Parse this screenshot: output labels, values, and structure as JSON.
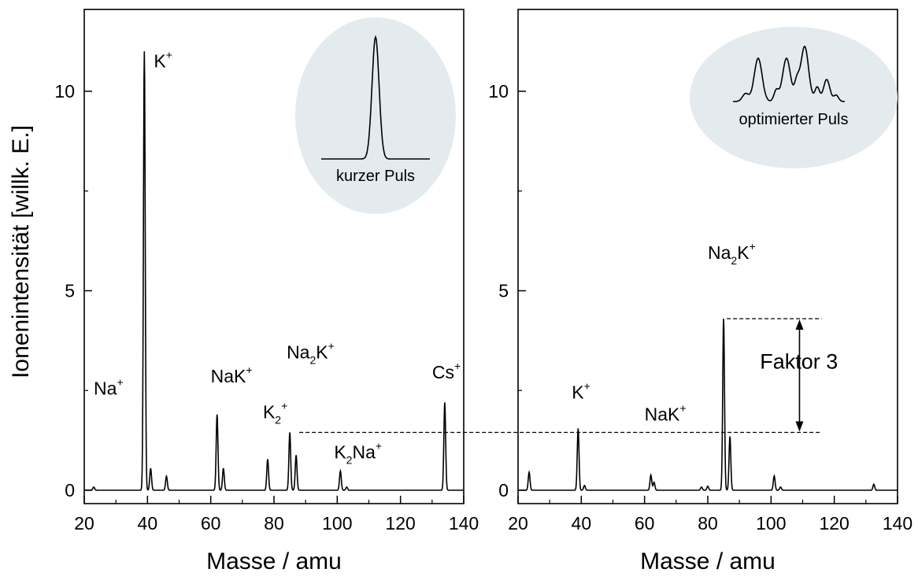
{
  "chart_data": {
    "type": "line",
    "ylabel": "Ionenintensität [willk. E.]",
    "ylim": [
      0,
      12
    ],
    "yticks": [
      0,
      5,
      10
    ],
    "panels": [
      {
        "id": "left",
        "xlabel": "Masse / amu",
        "xlim": [
          20,
          140
        ],
        "xticks": [
          20,
          40,
          60,
          80,
          100,
          120,
          140
        ],
        "inset": {
          "label": "kurzer Puls",
          "shape": "single-peak"
        },
        "peaks": [
          {
            "x": 23,
            "y": 0.08
          },
          {
            "x": 39,
            "y": 11.0
          },
          {
            "x": 41,
            "y": 0.55
          },
          {
            "x": 46,
            "y": 0.35
          },
          {
            "x": 62,
            "y": 1.9
          },
          {
            "x": 64,
            "y": 0.55
          },
          {
            "x": 78,
            "y": 0.78
          },
          {
            "x": 85,
            "y": 1.45
          },
          {
            "x": 87,
            "y": 0.88
          },
          {
            "x": 101,
            "y": 0.48
          },
          {
            "x": 103,
            "y": 0.08
          },
          {
            "x": 134,
            "y": 2.2
          }
        ],
        "annotations": [
          {
            "base": "Na",
            "sub": "",
            "sup": "+",
            "tail": "",
            "x": 23,
            "y": 2.4
          },
          {
            "base": "K",
            "sub": "",
            "sup": "+",
            "tail": "",
            "x": 42,
            "y": 10.6
          },
          {
            "base": "NaK",
            "sub": "",
            "sup": "+",
            "tail": "",
            "x": 60,
            "y": 2.7
          },
          {
            "base": "K",
            "sub": "2",
            "sup": "+",
            "tail": "",
            "x": 76.5,
            "y": 1.8
          },
          {
            "base": "Na",
            "sub": "2",
            "sup": "",
            "tail": "K",
            "tsup": "+",
            "x": 84,
            "y": 3.3
          },
          {
            "base": "K",
            "sub": "2",
            "sup": "",
            "tail": "Na",
            "tsup": "+",
            "x": 99,
            "y": 0.8
          },
          {
            "base": "Cs",
            "sub": "",
            "sup": "+",
            "tail": "",
            "x": 130,
            "y": 2.8
          }
        ]
      },
      {
        "id": "right",
        "xlabel": "Masse / amu",
        "xlim": [
          20,
          140
        ],
        "xticks": [
          20,
          40,
          60,
          80,
          100,
          120,
          140
        ],
        "inset": {
          "label": "optimierter Puls",
          "shape": "multi-peak"
        },
        "peaks": [
          {
            "x": 23.5,
            "y": 0.45
          },
          {
            "x": 39,
            "y": 1.55
          },
          {
            "x": 41,
            "y": 0.12
          },
          {
            "x": 62,
            "y": 0.38
          },
          {
            "x": 63,
            "y": 0.2
          },
          {
            "x": 78,
            "y": 0.08
          },
          {
            "x": 80,
            "y": 0.1
          },
          {
            "x": 85,
            "y": 4.3
          },
          {
            "x": 87,
            "y": 1.35
          },
          {
            "x": 101,
            "y": 0.36
          },
          {
            "x": 103,
            "y": 0.08
          },
          {
            "x": 132.5,
            "y": 0.15
          }
        ],
        "annotations": [
          {
            "base": "K",
            "sub": "",
            "sup": "+",
            "tail": "",
            "x": 37,
            "y": 2.3
          },
          {
            "base": "NaK",
            "sub": "",
            "sup": "+",
            "tail": "",
            "x": 60,
            "y": 1.75
          },
          {
            "base": "Na",
            "sub": "2",
            "sup": "",
            "tail": "K",
            "tsup": "+",
            "x": 80,
            "y": 5.8
          },
          {
            "base": "Faktor 3",
            "sub": "",
            "sup": "",
            "tail": "",
            "x": 96.5,
            "y": 3.05,
            "big": true
          }
        ]
      }
    ],
    "reference_lines": [
      {
        "label": "",
        "y": 1.45,
        "from": "left",
        "x_start": 88,
        "to_x": 116
      },
      {
        "label": "",
        "y": 4.3,
        "from": "right",
        "x_start": 86,
        "to_x": 116
      }
    ],
    "factor_arrow": {
      "label": "Faktor 3",
      "x": 109,
      "y_low": 1.45,
      "y_high": 4.3
    }
  }
}
